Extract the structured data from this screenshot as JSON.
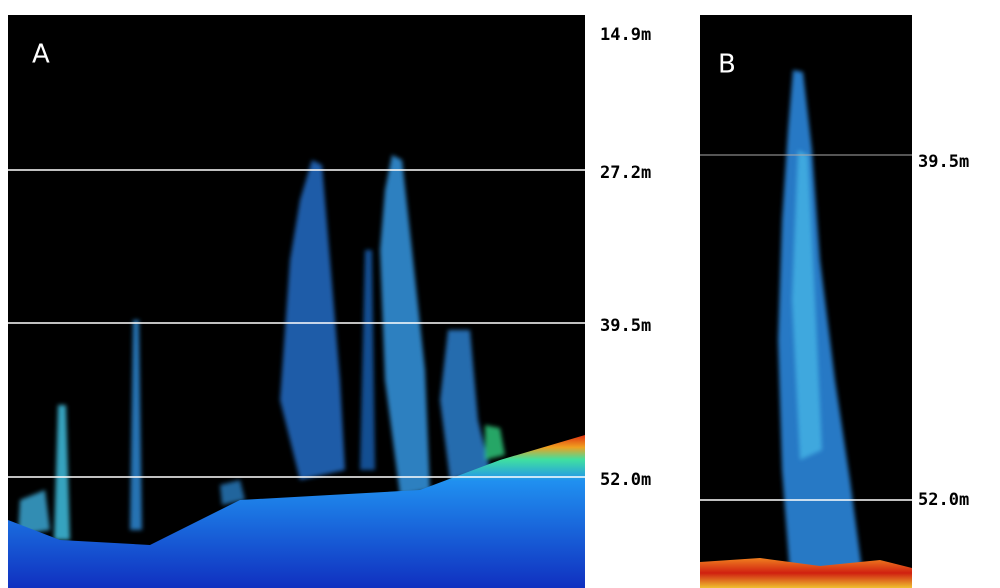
{
  "panels": [
    {
      "label": "A",
      "depth_labels": [
        "14.9m",
        "27.2m",
        "39.5m",
        "52.0m"
      ]
    },
    {
      "label": "B",
      "depth_labels": [
        "39.5m",
        "52.0m"
      ]
    }
  ]
}
